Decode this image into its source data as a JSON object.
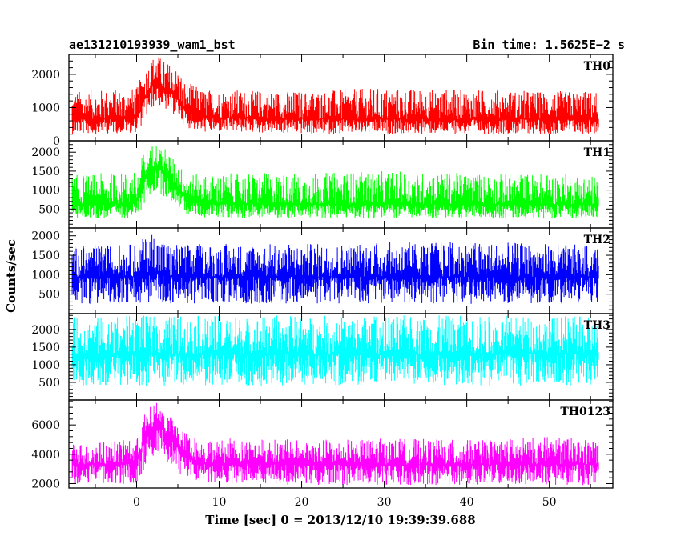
{
  "header": {
    "title": "ae131210193939_wam1_bst",
    "bin_time": "Bin time: 1.5625E−2 s"
  },
  "chart_data": {
    "type": "line",
    "xlabel": "Time [sec] 0 = 2013/12/10 19:39:39.688",
    "ylabel": "Counts/sec",
    "xlim": [
      -8.2,
      57.7
    ],
    "xticks": [
      0,
      10,
      20,
      30,
      40,
      50
    ],
    "xtick_labels": [
      "0",
      "10",
      "20",
      "30",
      "40",
      "50"
    ],
    "x_data_range": [
      -7.8,
      56.0
    ],
    "grid": false,
    "panels": [
      {
        "label": "TH0",
        "color": "#ff0000",
        "ylim": [
          0,
          2600
        ],
        "yticks": [
          0,
          1000,
          2000
        ],
        "ytick_labels": [
          "0",
          "1000",
          "2000"
        ],
        "series": [
          {
            "name": "TH0",
            "x": [
              -7.8,
              -4,
              0,
              1,
              2,
              2.5,
              3.5,
              5,
              6,
              8,
              12,
              20,
              30,
              40,
              50,
              56
            ],
            "mean": [
              650,
              650,
              700,
              1300,
              1700,
              1800,
              1500,
              1300,
              900,
              700,
              700,
              650,
              650,
              650,
              650,
              650
            ],
            "low": [
              200,
              200,
              250,
              600,
              1000,
              1100,
              900,
              700,
              400,
              250,
              250,
              200,
              200,
              200,
              200,
              200
            ],
            "high": [
              1500,
              1550,
              1600,
              2200,
              2550,
              2600,
              2400,
              2200,
              1800,
              1550,
              1550,
              1500,
              1600,
              1550,
              1500,
              1500
            ]
          }
        ]
      },
      {
        "label": "TH1",
        "color": "#00ff00",
        "ylim": [
          0,
          2300
        ],
        "yticks": [
          500,
          1000,
          1500,
          2000
        ],
        "ytick_labels": [
          "500",
          "1000",
          "1500",
          "2000"
        ],
        "series": [
          {
            "name": "TH1",
            "x": [
              -7.8,
              -4,
              0,
              1,
              2,
              2.5,
              3.5,
              5,
              6,
              8,
              12,
              20,
              30,
              40,
              50,
              56
            ],
            "mean": [
              600,
              620,
              650,
              1300,
              1600,
              1650,
              1400,
              1050,
              800,
              650,
              650,
              620,
              620,
              620,
              620,
              620
            ],
            "low": [
              250,
              250,
              280,
              600,
              900,
              950,
              800,
              550,
              350,
              280,
              270,
              250,
              250,
              250,
              250,
              250
            ],
            "high": [
              1400,
              1450,
              1500,
              2100,
              2250,
              2250,
              2100,
              1700,
              1500,
              1400,
              1450,
              1450,
              1500,
              1450,
              1450,
              1400
            ]
          }
        ]
      },
      {
        "label": "TH2",
        "color": "#0000ff",
        "ylim": [
          0,
          2200
        ],
        "yticks": [
          500,
          1000,
          1500,
          2000
        ],
        "ytick_labels": [
          "500",
          "1000",
          "1500",
          "2000"
        ],
        "series": [
          {
            "name": "TH2",
            "x": [
              -7.8,
              0,
              2,
              4,
              10,
              20,
              30,
              40,
              50,
              56
            ],
            "mean": [
              950,
              950,
              1050,
              950,
              950,
              950,
              950,
              950,
              950,
              950
            ],
            "low": [
              250,
              250,
              300,
              250,
              250,
              250,
              250,
              250,
              250,
              250
            ],
            "high": [
              1750,
              1800,
              2150,
              1800,
              1800,
              1800,
              1850,
              1850,
              1800,
              1750
            ]
          }
        ]
      },
      {
        "label": "TH3",
        "color": "#00ffff",
        "ylim": [
          0,
          2450
        ],
        "yticks": [
          500,
          1000,
          1500,
          2000
        ],
        "ytick_labels": [
          "500",
          "1000",
          "1500",
          "2000"
        ],
        "series": [
          {
            "name": "TH3",
            "x": [
              -7.8,
              0,
              2,
              4,
              10,
              20,
              30,
              40,
              50,
              56
            ],
            "mean": [
              1300,
              1300,
              1320,
              1300,
              1300,
              1300,
              1300,
              1300,
              1300,
              1300
            ],
            "low": [
              400,
              400,
              400,
              400,
              400,
              400,
              400,
              400,
              400,
              400
            ],
            "high": [
              2350,
              2400,
              2400,
              2400,
              2400,
              2400,
              2400,
              2400,
              2400,
              2350
            ]
          }
        ]
      },
      {
        "label": "TH0123",
        "color": "#ff00ff",
        "ylim": [
          1700,
          7700
        ],
        "yticks": [
          2000,
          4000,
          6000
        ],
        "ytick_labels": [
          "2000",
          "4000",
          "6000"
        ],
        "series": [
          {
            "name": "TH0123",
            "x": [
              -7.8,
              -4,
              0,
              1,
              2,
              2.5,
              3.5,
              5,
              6,
              8,
              12,
              20,
              30,
              40,
              50,
              56
            ],
            "mean": [
              3300,
              3300,
              3500,
              5000,
              5800,
              6000,
              5400,
              4500,
              3800,
              3400,
              3400,
              3300,
              3300,
              3300,
              3300,
              3300
            ],
            "low": [
              1900,
              1900,
              2000,
              3000,
              3800,
              4000,
              3500,
              2800,
              2200,
              2000,
              1950,
              1900,
              1900,
              1900,
              1900,
              1900
            ],
            "high": [
              4800,
              4900,
              5000,
              6800,
              7500,
              7600,
              7000,
              6000,
              5500,
              5000,
              5100,
              5000,
              5100,
              5000,
              5200,
              5000
            ]
          }
        ]
      }
    ]
  }
}
